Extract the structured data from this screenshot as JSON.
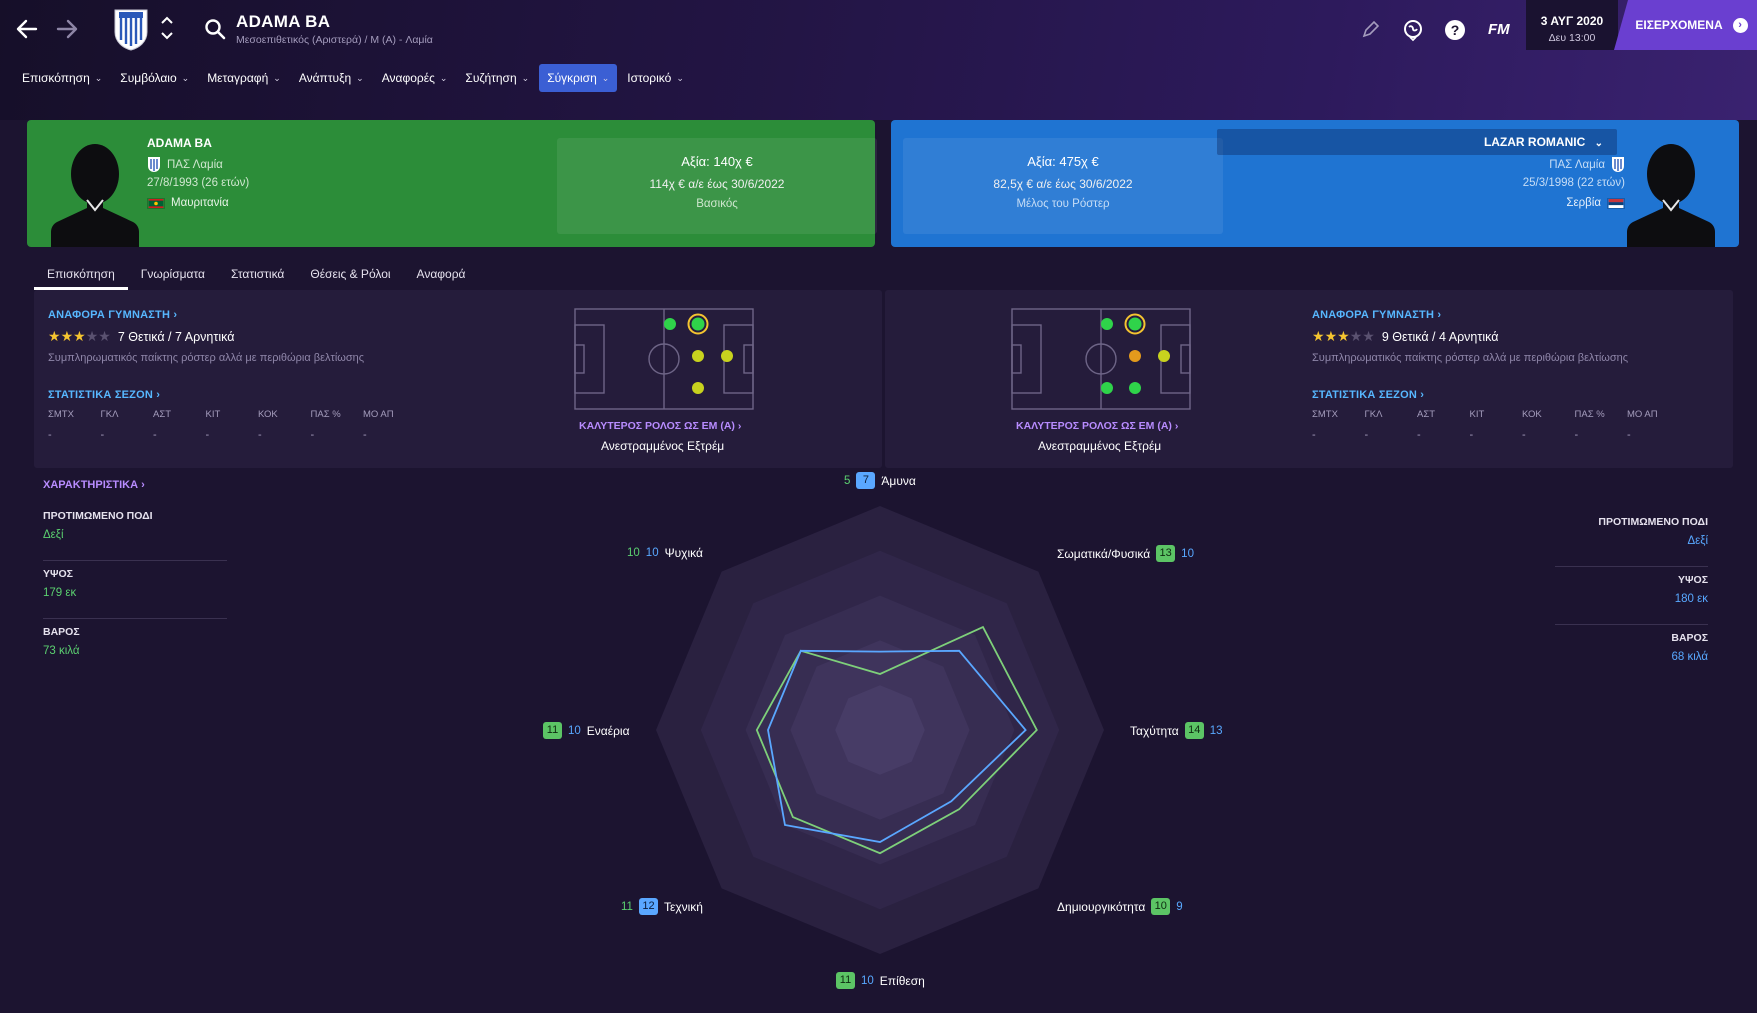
{
  "header": {
    "player_name": "ADAMA BA",
    "player_subtitle": "Μεσοεπιθετικός (Αριστερά) / M (A) - Λαμία",
    "fm_logo": "FM",
    "date": "3 ΑΥΓ 2020",
    "day_time": "Δευ 13:00",
    "continue_label": "ΕΙΣΕΡΧΟΜΕΝΑ",
    "icons": [
      "back-arrow-icon",
      "forward-arrow-icon",
      "search-icon",
      "pencil-icon",
      "brain-icon",
      "help-icon",
      "arrow-right-icon"
    ]
  },
  "menu": {
    "items": [
      {
        "label": "Επισκόπηση"
      },
      {
        "label": "Συμβόλαιο"
      },
      {
        "label": "Μεταγραφή"
      },
      {
        "label": "Ανάπτυξη"
      },
      {
        "label": "Αναφορές"
      },
      {
        "label": "Συζήτηση"
      },
      {
        "label": "Σύγκριση",
        "active": true
      },
      {
        "label": "Ιστορικό"
      }
    ]
  },
  "left_player": {
    "name": "ADAMA BA",
    "club": "ΠΑΣ Λαμία",
    "dob": "27/8/1993 (26 ετών)",
    "nationality": "Μαυριτανία",
    "value": "Αξία: 140χ €",
    "contract": "114χ € α/ε έως 30/6/2022",
    "status": "Βασικός",
    "card_color": "#2c8d39"
  },
  "right_player": {
    "selector": "LAZAR ROMANIC",
    "club": "ΠΑΣ Λαμία",
    "dob": "25/3/1998 (22 ετών)",
    "nationality": "Σερβία",
    "value": "Αξία: 475χ €",
    "contract": "82,5χ € α/ε έως 30/6/2022",
    "status": "Μέλος του Ρόστερ",
    "card_color": "#1f74d2"
  },
  "tabs": [
    "Επισκόπηση",
    "Γνωρίσματα",
    "Στατιστικά",
    "Θέσεις & Ρόλοι",
    "Αναφορά"
  ],
  "left_panel": {
    "scout_title": "ΑΝΑΦΟΡΑ ΓΥΜΝΑΣΤΗ",
    "stars": 3,
    "stars_max": 5,
    "pros_cons": "7 Θετικά / 7 Αρνητικά",
    "summary": "Συμπληρωματικός παίκτης ρόστερ αλλά με περιθώρια βελτίωσης",
    "stats_title": "ΣΤΑΤΙΣΤΙΚΑ ΣΕΖΟΝ",
    "stat_headers": [
      "ΣΜΤΧ",
      "ΓΚΛ",
      "ΑΣΤ",
      "ΚΙΤ",
      "ΚΟΚ",
      "ΠΑΣ %",
      "ΜΟ ΑΠ"
    ],
    "stat_values": [
      "-",
      "-",
      "-",
      "-",
      "-",
      "-",
      "-"
    ],
    "best_role_title": "ΚΑΛΥΤΕΡΟΣ ΡΟΛΟΣ ΩΣ ΕΜ (Α)",
    "best_role": "Ανεστραμμένος Εξτρέμ"
  },
  "right_panel": {
    "scout_title": "ΑΝΑΦΟΡΑ ΓΥΜΝΑΣΤΗ",
    "stars": 3,
    "stars_max": 5,
    "pros_cons": "9 Θετικά / 4 Αρνητικά",
    "summary": "Συμπληρωματικός παίκτης ρόστερ αλλά με περιθώρια βελτίωσης",
    "stats_title": "ΣΤΑΤΙΣΤΙΚΑ ΣΕΖΟΝ",
    "stat_headers": [
      "ΣΜΤΧ",
      "ΓΚΛ",
      "ΑΣΤ",
      "ΚΙΤ",
      "ΚΟΚ",
      "ΠΑΣ %",
      "ΜΟ ΑΠ"
    ],
    "stat_values": [
      "-",
      "-",
      "-",
      "-",
      "-",
      "-",
      "-"
    ],
    "best_role_title": "ΚΑΛΥΤΕΡΟΣ ΡΟΛΟΣ ΩΣ ΕΜ (Α)",
    "best_role": "Ανεστραμμένος Εξτρέμ"
  },
  "attributes": {
    "title": "ΧΑΡΑΚΤΗΡΙΣΤΙΚΑ",
    "left": [
      {
        "label": "ΠΡΟΤΙΜΩΜΕΝΟ ΠΟΔΙ",
        "value": "Δεξί"
      },
      {
        "label": "ΥΨΟΣ",
        "value": "179 εκ"
      },
      {
        "label": "ΒΑΡΟΣ",
        "value": "73 κιλά"
      }
    ],
    "right": [
      {
        "label": "ΠΡΟΤΙΜΩΜΕΝΟ ΠΟΔΙ",
        "value": "Δεξί"
      },
      {
        "label": "ΥΨΟΣ",
        "value": "180 εκ"
      },
      {
        "label": "ΒΑΡΟΣ",
        "value": "68 κιλά"
      }
    ]
  },
  "radar": {
    "max": 20,
    "axes": [
      {
        "label": "Άμυνα",
        "left": 5,
        "right": 7,
        "highlight": "right"
      },
      {
        "label": "Σωματικά/Φυσικά",
        "left": 13,
        "right": 10,
        "highlight": "left"
      },
      {
        "label": "Ταχύτητα",
        "left": 14,
        "right": 13,
        "highlight": "left"
      },
      {
        "label": "Δημιουργικότητα",
        "left": 10,
        "right": 9,
        "highlight": "left"
      },
      {
        "label": "Επίθεση",
        "left": 11,
        "right": 10,
        "highlight": "left"
      },
      {
        "label": "Τεχνική",
        "left": 11,
        "right": 12,
        "highlight": "right"
      },
      {
        "label": "Εναέρια",
        "left": 11,
        "right": 10,
        "highlight": "left"
      },
      {
        "label": "Ψυχικά",
        "left": 10,
        "right": 10,
        "highlight": "none"
      }
    ],
    "left_color": "#7ed07a",
    "right_color": "#5aa7ff"
  },
  "positions": {
    "left": [
      {
        "pos": "MR",
        "level": "natural",
        "primary": false
      },
      {
        "pos": "AML",
        "level": "natural",
        "primary": true
      },
      {
        "pos": "ML",
        "level": "competent",
        "primary": false
      },
      {
        "pos": "AMC",
        "level": "competent",
        "primary": false
      },
      {
        "pos": "MC",
        "level": "competent",
        "primary": false
      }
    ],
    "right": [
      {
        "pos": "MR",
        "level": "natural",
        "primary": false
      },
      {
        "pos": "AML",
        "level": "natural",
        "primary": true
      },
      {
        "pos": "ML",
        "level": "unconvincing",
        "primary": false
      },
      {
        "pos": "AMC",
        "level": "competent",
        "primary": false
      },
      {
        "pos": "DMR",
        "level": "natural",
        "primary": false
      },
      {
        "pos": "DML",
        "level": "natural",
        "primary": false
      }
    ]
  }
}
